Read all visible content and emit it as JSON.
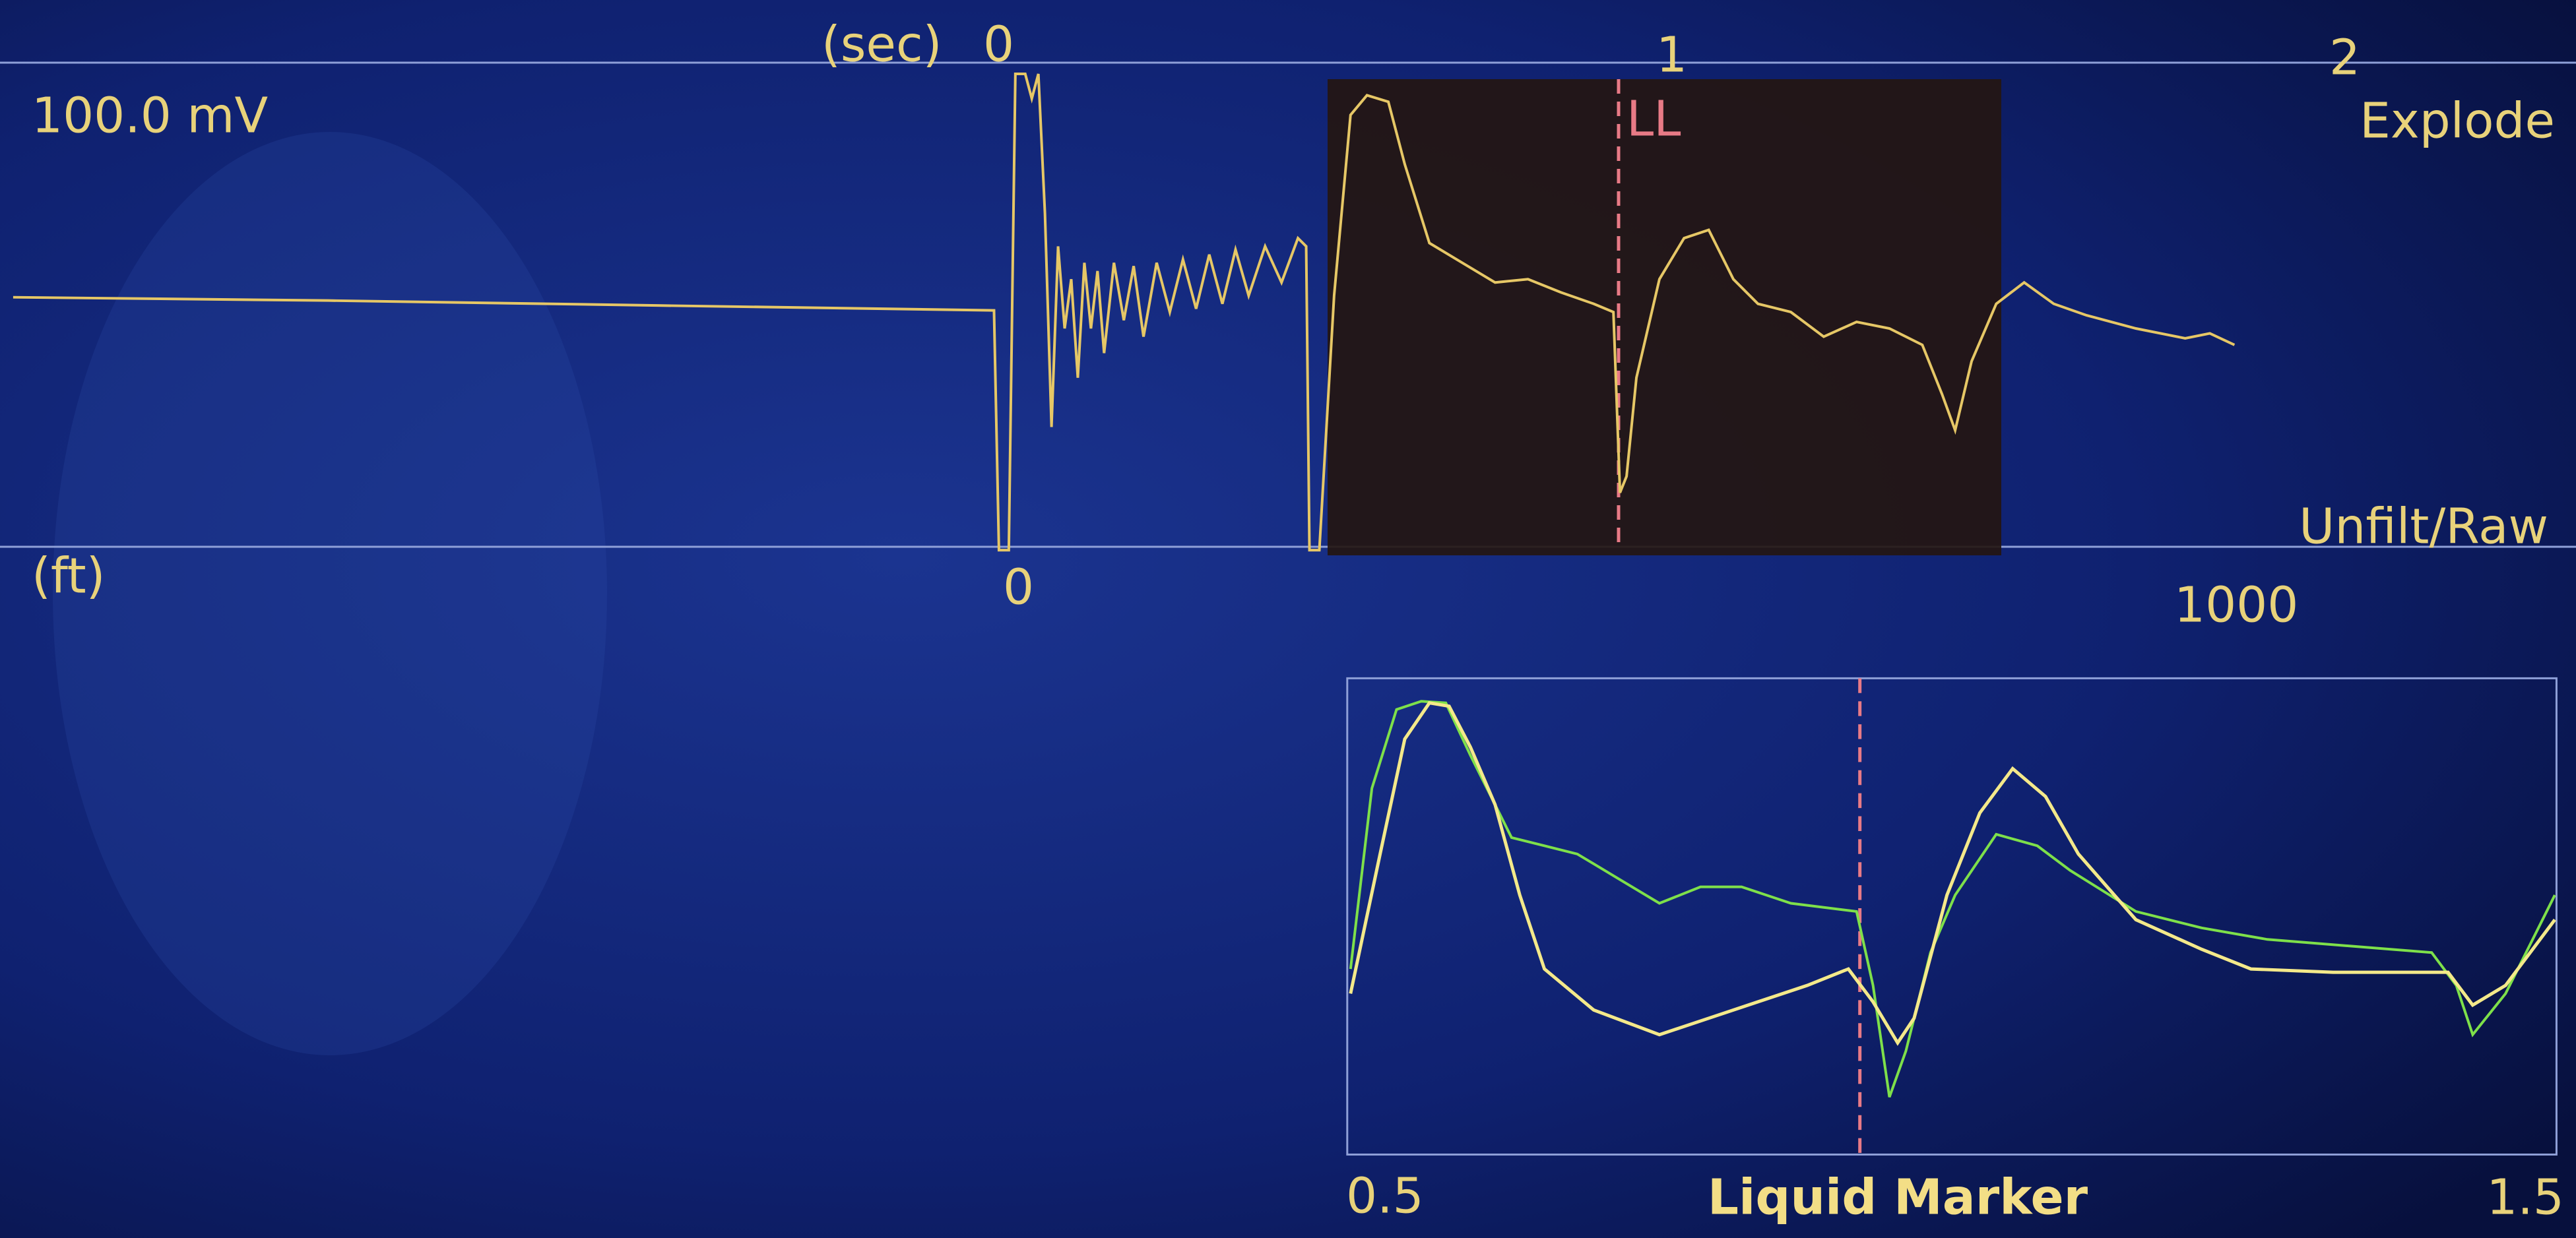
{
  "time_axis": {
    "unit": "(sec)",
    "ticks": [
      "0",
      "1",
      "2"
    ]
  },
  "top_panel": {
    "scale": "100.0 mV",
    "mode": "Explode",
    "marker": "LL",
    "filter": "Unfilt/Raw"
  },
  "depth_axis": {
    "unit": "(ft)",
    "ticks": [
      "0",
      "1000"
    ]
  },
  "bottom_panel": {
    "x_start": "0.5",
    "label": "Liquid Marker",
    "x_end": "1.5"
  }
}
